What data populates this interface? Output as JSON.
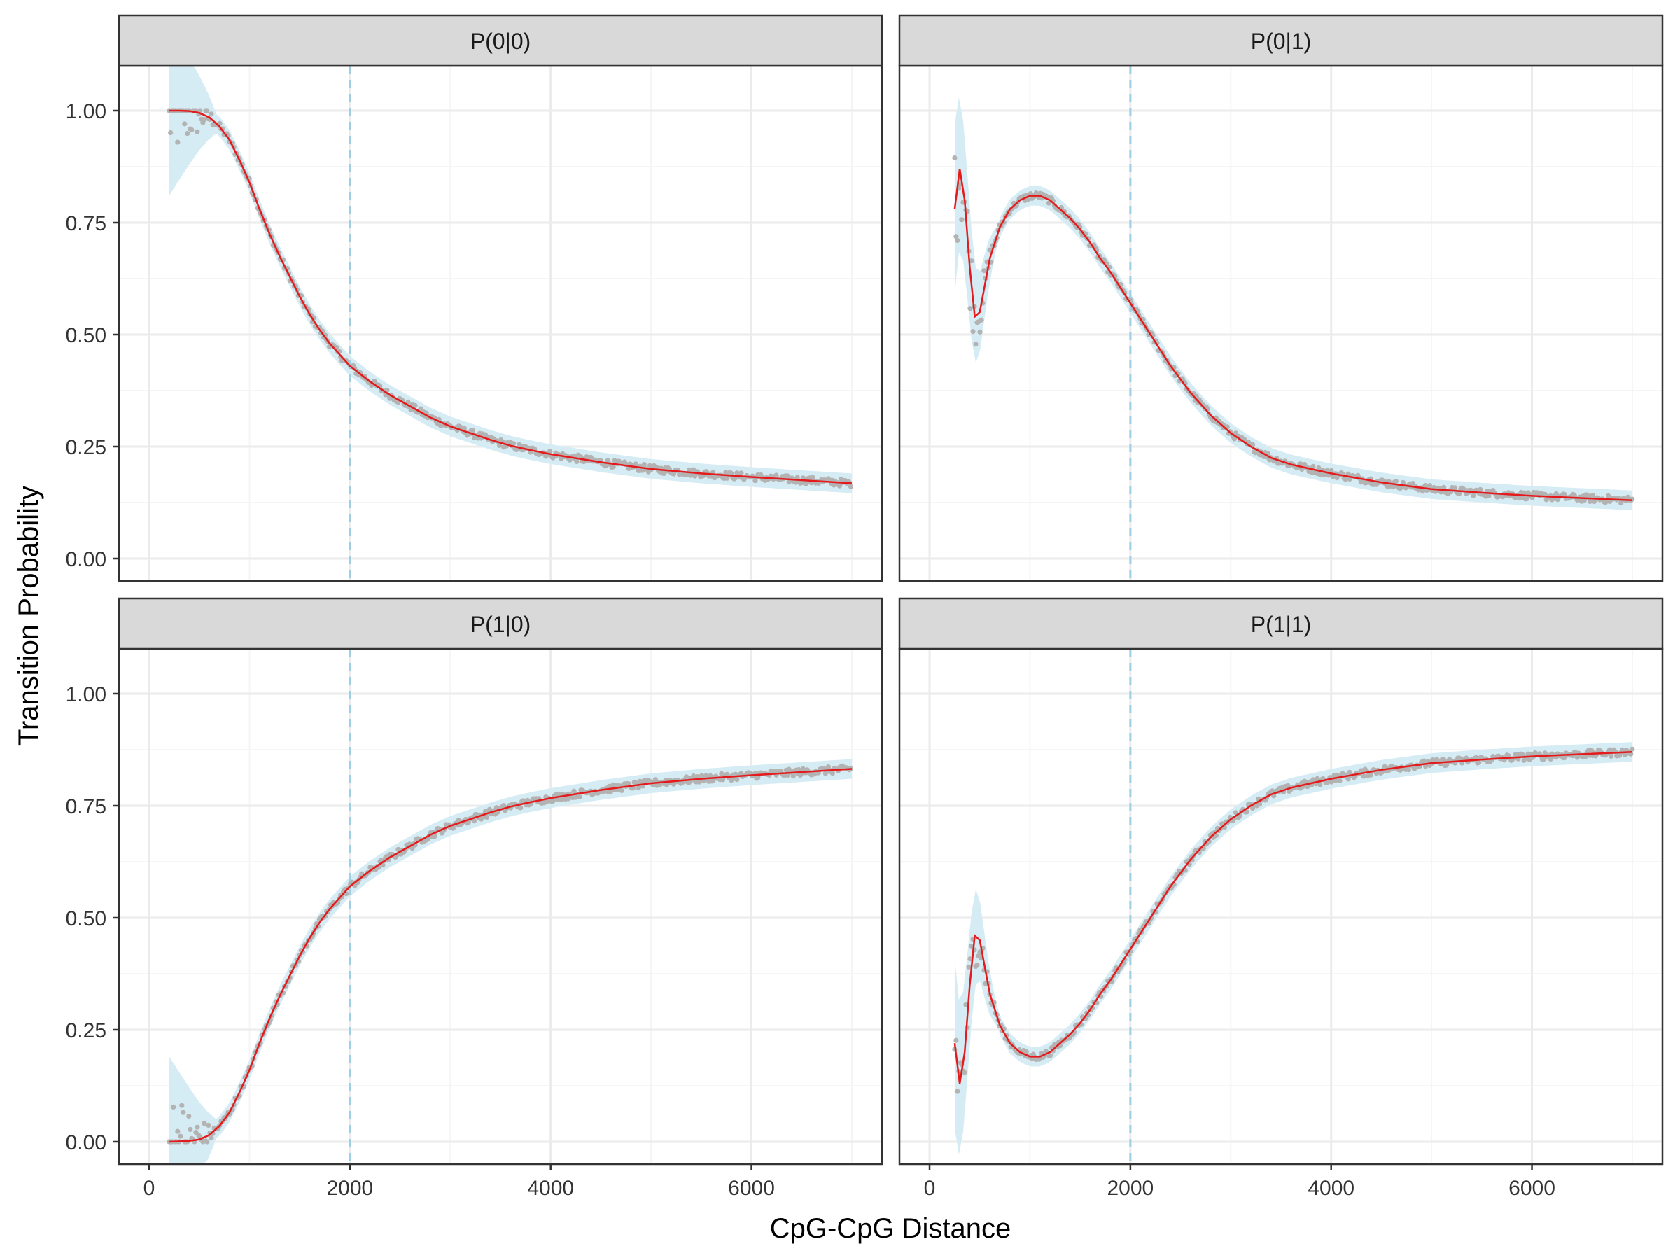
{
  "figure": {
    "xlabel": "CpG-CpG Distance",
    "ylabel": "Transition Probability"
  },
  "colors": {
    "strip_fill": "#d9d9d9",
    "panel_border": "#333333",
    "grid_major": "#ebebeb",
    "grid_minor": "#f5f5f5",
    "ribbon": "#d6ecf5",
    "points": "#b3b3b3",
    "fit_line": "#e41a1c",
    "vline": "#9ecfe3",
    "text": "#333333",
    "title": "#000000"
  },
  "chart_data": [
    {
      "type": "scatter",
      "panel": "P(0|0)",
      "xlim": [
        -300,
        7300
      ],
      "ylim": [
        -0.05,
        1.1
      ],
      "x_ticks": [
        0,
        2000,
        4000,
        6000
      ],
      "x_tick_labels": [
        "0",
        "2000",
        "4000",
        "6000"
      ],
      "y_ticks": [
        0,
        0.25,
        0.5,
        0.75,
        1
      ],
      "y_tick_labels": [
        "0.00",
        "0.25",
        "0.50",
        "0.75",
        "1.00"
      ],
      "grid": true,
      "reference_line_x": 2000,
      "series": [
        {
          "name": "",
          "x": [
            200,
            300,
            400,
            500,
            600,
            700,
            800,
            900,
            1000,
            1100,
            1200,
            1300,
            1400,
            1500,
            1600,
            1700,
            1800,
            1900,
            2000,
            2200,
            2400,
            2600,
            2800,
            3000,
            3200,
            3400,
            3600,
            3800,
            4000,
            4500,
            5000,
            5500,
            6000,
            6500,
            7000
          ],
          "y": [
            1.0,
            1.0,
            0.999,
            0.995,
            0.985,
            0.965,
            0.935,
            0.89,
            0.84,
            0.78,
            0.725,
            0.675,
            0.63,
            0.585,
            0.545,
            0.51,
            0.48,
            0.455,
            0.43,
            0.395,
            0.365,
            0.34,
            0.315,
            0.295,
            0.28,
            0.265,
            0.252,
            0.242,
            0.233,
            0.215,
            0.2,
            0.19,
            0.182,
            0.175,
            0.168
          ]
        }
      ]
    },
    {
      "type": "scatter",
      "panel": "P(0|1)",
      "xlim": [
        -300,
        7300
      ],
      "ylim": [
        -0.05,
        1.1
      ],
      "x_ticks": [
        0,
        2000,
        4000,
        6000
      ],
      "x_tick_labels": [
        "0",
        "2000",
        "4000",
        "6000"
      ],
      "y_ticks": [
        0,
        0.25,
        0.5,
        0.75,
        1
      ],
      "y_tick_labels": [
        "0.00",
        "0.25",
        "0.50",
        "0.75",
        "1.00"
      ],
      "grid": true,
      "reference_line_x": 2000,
      "series": [
        {
          "name": "",
          "x": [
            250,
            300,
            350,
            400,
            450,
            500,
            550,
            600,
            700,
            800,
            900,
            1000,
            1100,
            1200,
            1300,
            1400,
            1500,
            1600,
            1700,
            1800,
            1900,
            2000,
            2200,
            2400,
            2600,
            2800,
            3000,
            3200,
            3400,
            3600,
            3800,
            4000,
            4500,
            5000,
            5500,
            6000,
            6500,
            7000
          ],
          "y": [
            0.78,
            0.87,
            0.8,
            0.65,
            0.54,
            0.55,
            0.61,
            0.67,
            0.74,
            0.78,
            0.8,
            0.81,
            0.81,
            0.8,
            0.78,
            0.76,
            0.735,
            0.705,
            0.67,
            0.64,
            0.605,
            0.57,
            0.5,
            0.43,
            0.37,
            0.32,
            0.28,
            0.25,
            0.225,
            0.21,
            0.2,
            0.19,
            0.17,
            0.155,
            0.147,
            0.14,
            0.135,
            0.13
          ]
        }
      ]
    },
    {
      "type": "scatter",
      "panel": "P(1|0)",
      "xlim": [
        -300,
        7300
      ],
      "ylim": [
        -0.05,
        1.1
      ],
      "x_ticks": [
        0,
        2000,
        4000,
        6000
      ],
      "x_tick_labels": [
        "0",
        "2000",
        "4000",
        "6000"
      ],
      "y_ticks": [
        0,
        0.25,
        0.5,
        0.75,
        1
      ],
      "y_tick_labels": [
        "0.00",
        "0.25",
        "0.50",
        "0.75",
        "1.00"
      ],
      "grid": true,
      "reference_line_x": 2000,
      "series": [
        {
          "name": "",
          "x": [
            200,
            300,
            400,
            500,
            600,
            700,
            800,
            900,
            1000,
            1100,
            1200,
            1300,
            1400,
            1500,
            1600,
            1700,
            1800,
            1900,
            2000,
            2200,
            2400,
            2600,
            2800,
            3000,
            3200,
            3400,
            3600,
            3800,
            4000,
            4500,
            5000,
            5500,
            6000,
            6500,
            7000
          ],
          "y": [
            0.0,
            0.001,
            0.002,
            0.005,
            0.015,
            0.035,
            0.065,
            0.11,
            0.16,
            0.22,
            0.275,
            0.325,
            0.37,
            0.415,
            0.455,
            0.49,
            0.52,
            0.545,
            0.57,
            0.605,
            0.635,
            0.66,
            0.685,
            0.705,
            0.72,
            0.735,
            0.748,
            0.758,
            0.767,
            0.785,
            0.8,
            0.81,
            0.818,
            0.825,
            0.832
          ]
        }
      ]
    },
    {
      "type": "scatter",
      "panel": "P(1|1)",
      "xlim": [
        -300,
        7300
      ],
      "ylim": [
        -0.05,
        1.1
      ],
      "x_ticks": [
        0,
        2000,
        4000,
        6000
      ],
      "x_tick_labels": [
        "0",
        "2000",
        "4000",
        "6000"
      ],
      "y_ticks": [
        0,
        0.25,
        0.5,
        0.75,
        1
      ],
      "y_tick_labels": [
        "0.00",
        "0.25",
        "0.50",
        "0.75",
        "1.00"
      ],
      "grid": true,
      "reference_line_x": 2000,
      "series": [
        {
          "name": "",
          "x": [
            250,
            300,
            350,
            400,
            450,
            500,
            550,
            600,
            700,
            800,
            900,
            1000,
            1100,
            1200,
            1300,
            1400,
            1500,
            1600,
            1700,
            1800,
            1900,
            2000,
            2200,
            2400,
            2600,
            2800,
            3000,
            3200,
            3400,
            3600,
            3800,
            4000,
            4500,
            5000,
            5500,
            6000,
            6500,
            7000
          ],
          "y": [
            0.22,
            0.13,
            0.2,
            0.35,
            0.46,
            0.45,
            0.39,
            0.33,
            0.26,
            0.22,
            0.2,
            0.19,
            0.19,
            0.2,
            0.22,
            0.24,
            0.265,
            0.295,
            0.33,
            0.36,
            0.395,
            0.43,
            0.5,
            0.57,
            0.63,
            0.68,
            0.72,
            0.75,
            0.775,
            0.79,
            0.8,
            0.81,
            0.83,
            0.845,
            0.853,
            0.86,
            0.865,
            0.87
          ]
        }
      ]
    }
  ]
}
